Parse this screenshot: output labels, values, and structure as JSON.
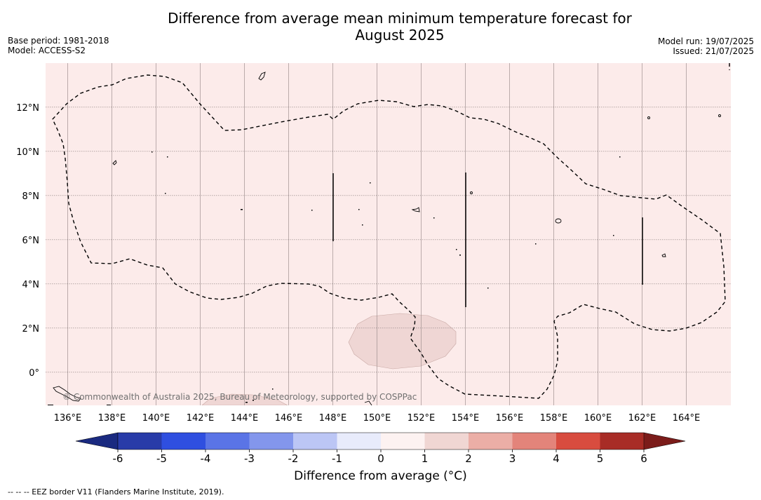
{
  "title_line1": "Difference from average mean minimum temperature forecast for",
  "title_line2": "August 2025",
  "base_period": "Base period: 1981-2018",
  "model": "Model: ACCESS-S2",
  "model_run": "Model run: 19/07/2025",
  "issued": "Issued: 21/07/2025",
  "copyright": "© Commonwealth of Australia 2025, Bureau of Meteorology, supported by COSPPac",
  "footnote": "--  --  -- EEZ border V11 (Flanders Marine Institute, 2019).",
  "map": {
    "lon_range": [
      135,
      166
    ],
    "lat_range": [
      -1.5,
      14
    ],
    "lon_ticks": [
      "136°E",
      "138°E",
      "140°E",
      "142°E",
      "144°E",
      "146°E",
      "148°E",
      "150°E",
      "152°E",
      "154°E",
      "156°E",
      "158°E",
      "160°E",
      "162°E",
      "164°E"
    ],
    "lat_ticks": [
      "12°N",
      "10°N",
      "8°N",
      "6°N",
      "4°N",
      "2°N",
      "0°"
    ],
    "background_class": "0 to 1",
    "anomaly_region": {
      "class": "1 to 2",
      "approx_center": [
        151.5,
        1.6
      ]
    },
    "eez_boundary_style": "dashed",
    "colors": {
      "background": "#fcebea",
      "anomaly_1_2": "#efd6d4"
    }
  },
  "colorbar": {
    "title": "Difference from average ($^\\circ$C)",
    "title_display": "Difference from average (°C)",
    "ticks": [
      "-6",
      "-5",
      "-4",
      "-3",
      "-2",
      "-1",
      "0",
      "1",
      "2",
      "3",
      "4",
      "5",
      "6"
    ],
    "colors": [
      "#283ba8",
      "#2f4fe0",
      "#5a74e6",
      "#8396ec",
      "#bcc6f5",
      "#e8ebfb",
      "#fdf2f1",
      "#f0d6d3",
      "#ebaea6",
      "#e3847a",
      "#d84c3f",
      "#a82c26"
    ],
    "under_color": "#1a2a80",
    "over_color": "#7b1c1a"
  }
}
